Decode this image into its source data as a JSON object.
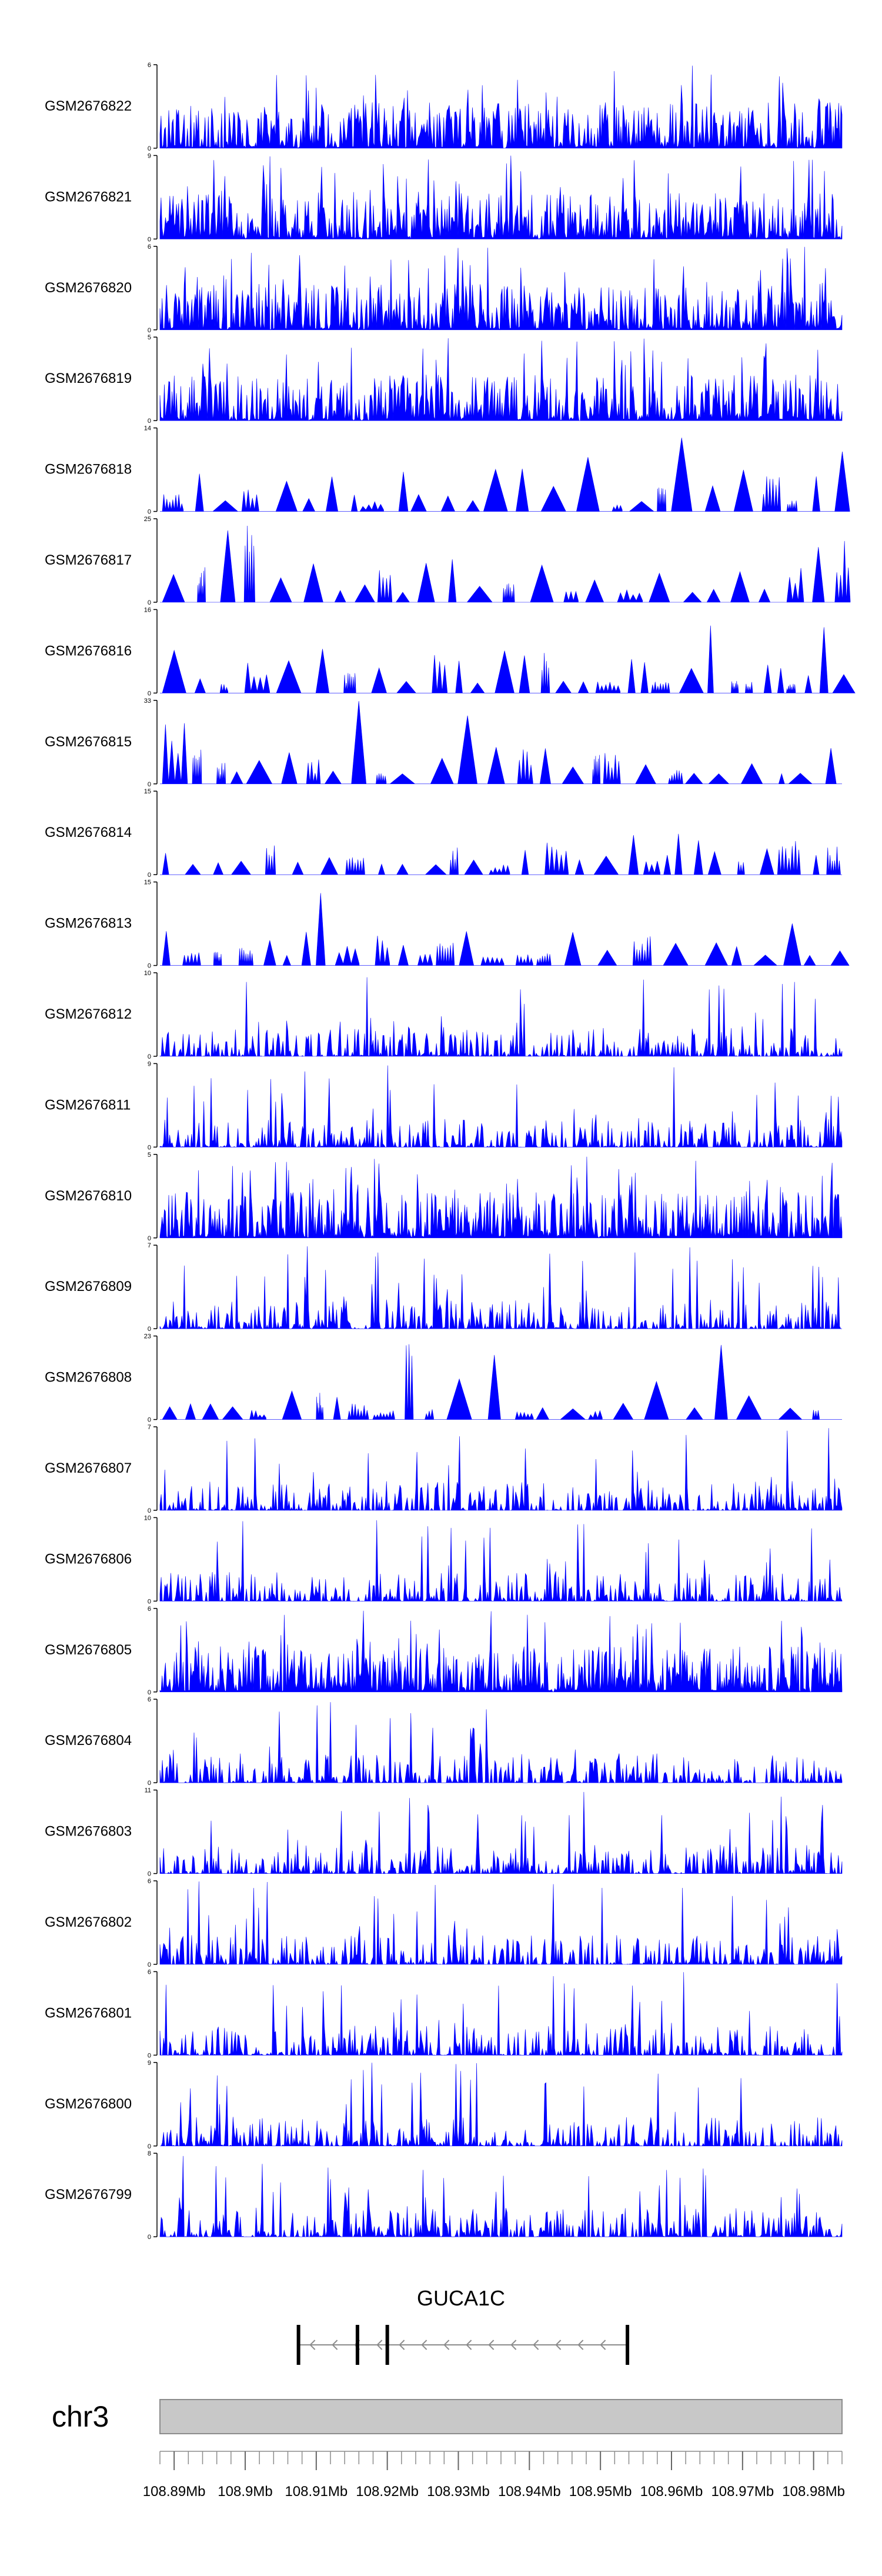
{
  "chart_data": {
    "type": "area",
    "fill_color": "#0000ff",
    "chromosome": "chr3",
    "gene": {
      "name": "GUCA1C",
      "strand": "-",
      "start_mb": 108.9075,
      "end_mb": 108.9538,
      "exons_mb": [
        108.9075,
        108.9158,
        108.92,
        108.9538
      ]
    },
    "x_range_mb": [
      108.888,
      108.984
    ],
    "x_ticks": [
      {
        "value": 108.89,
        "label": "108.89Mb"
      },
      {
        "value": 108.9,
        "label": "108.9Mb"
      },
      {
        "value": 108.91,
        "label": "108.91Mb"
      },
      {
        "value": 108.92,
        "label": "108.92Mb"
      },
      {
        "value": 108.93,
        "label": "108.93Mb"
      },
      {
        "value": 108.94,
        "label": "108.94Mb"
      },
      {
        "value": 108.95,
        "label": "108.95Mb"
      },
      {
        "value": 108.96,
        "label": "108.96Mb"
      },
      {
        "value": 108.97,
        "label": "108.97Mb"
      },
      {
        "value": 108.98,
        "label": "108.98Mb"
      }
    ],
    "tracks": [
      {
        "name": "GSM2676822",
        "ymax": 6,
        "style": "dense"
      },
      {
        "name": "GSM2676821",
        "ymax": 9,
        "style": "dense"
      },
      {
        "name": "GSM2676820",
        "ymax": 6,
        "style": "dense"
      },
      {
        "name": "GSM2676819",
        "ymax": 5,
        "style": "dense"
      },
      {
        "name": "GSM2676818",
        "ymax": 14,
        "style": "sparse"
      },
      {
        "name": "GSM2676817",
        "ymax": 25,
        "style": "sparse"
      },
      {
        "name": "GSM2676816",
        "ymax": 16,
        "style": "sparse"
      },
      {
        "name": "GSM2676815",
        "ymax": 33,
        "style": "sparse"
      },
      {
        "name": "GSM2676814",
        "ymax": 15,
        "style": "sparse"
      },
      {
        "name": "GSM2676813",
        "ymax": 15,
        "style": "sparse"
      },
      {
        "name": "GSM2676812",
        "ymax": 10,
        "style": "medium"
      },
      {
        "name": "GSM2676811",
        "ymax": 9,
        "style": "medium"
      },
      {
        "name": "GSM2676810",
        "ymax": 5,
        "style": "dense"
      },
      {
        "name": "GSM2676809",
        "ymax": 7,
        "style": "medium"
      },
      {
        "name": "GSM2676808",
        "ymax": 23,
        "style": "sparse"
      },
      {
        "name": "GSM2676807",
        "ymax": 7,
        "style": "medium"
      },
      {
        "name": "GSM2676806",
        "ymax": 10,
        "style": "medium"
      },
      {
        "name": "GSM2676805",
        "ymax": 6,
        "style": "dense"
      },
      {
        "name": "GSM2676804",
        "ymax": 6,
        "style": "medium"
      },
      {
        "name": "GSM2676803",
        "ymax": 11,
        "style": "medium"
      },
      {
        "name": "GSM2676802",
        "ymax": 6,
        "style": "medium"
      },
      {
        "name": "GSM2676801",
        "ymax": 6,
        "style": "medium"
      },
      {
        "name": "GSM2676800",
        "ymax": 9,
        "style": "medium"
      },
      {
        "name": "GSM2676799",
        "ymax": 8,
        "style": "medium"
      }
    ]
  }
}
